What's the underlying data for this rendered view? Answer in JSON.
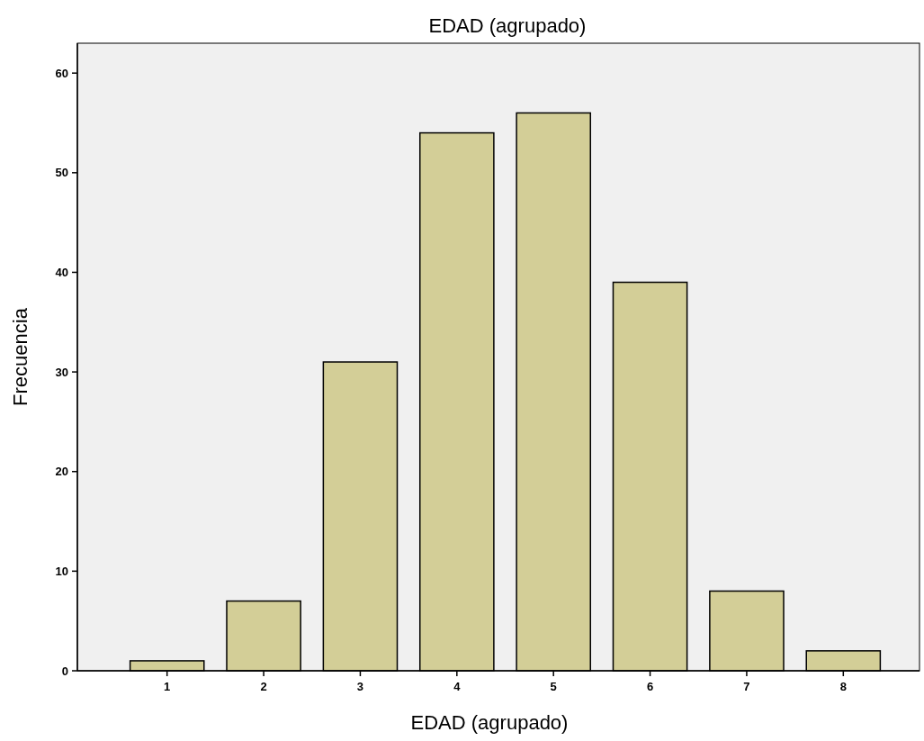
{
  "chart_data": {
    "type": "bar",
    "title": "EDAD (agrupado)",
    "xlabel": "EDAD (agrupado)",
    "ylabel": "Frecuencia",
    "categories": [
      "1",
      "2",
      "3",
      "4",
      "5",
      "6",
      "7",
      "8"
    ],
    "values": [
      1,
      7,
      31,
      54,
      56,
      39,
      8,
      2
    ],
    "color": "#d3ce97",
    "ylim": [
      0,
      63
    ],
    "yticks": [
      0,
      10,
      20,
      30,
      40,
      50,
      60
    ],
    "grid": false
  }
}
